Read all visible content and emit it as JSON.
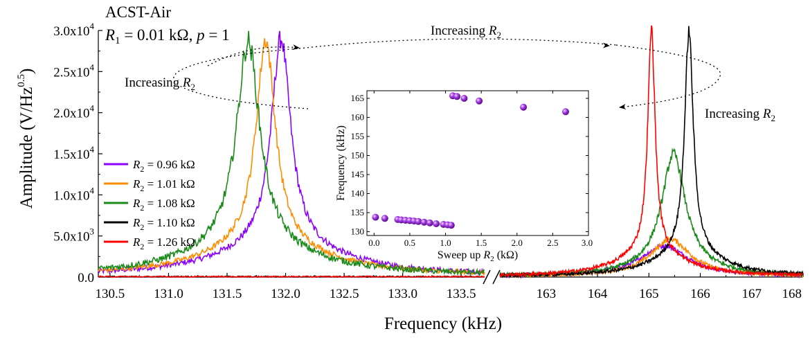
{
  "chart_data": {
    "type": "line",
    "header_line1": "ACST-Air",
    "header_line2": {
      "R": "R",
      "sub": "1",
      "rest": " = 0.01 kΩ, ",
      "p": "p",
      "rest2": " = 1"
    },
    "xlabel": "Frequency (kHz)",
    "ylabel": {
      "main": "Amplitude (V/Hz",
      "sup": "0.5",
      "close": ")"
    },
    "ylim": [
      0,
      30000
    ],
    "y_ticks": [
      {
        "value": 0,
        "label": "0.0"
      },
      {
        "value": 5000,
        "mant": "5.0x10",
        "exp": "3"
      },
      {
        "value": 10000,
        "mant": "1.0x10",
        "exp": "4"
      },
      {
        "value": 15000,
        "mant": "1.5x10",
        "exp": "4"
      },
      {
        "value": 20000,
        "mant": "2.0x10",
        "exp": "4"
      },
      {
        "value": 25000,
        "mant": "2.5x10",
        "exp": "4"
      },
      {
        "value": 30000,
        "mant": "3.0x10",
        "exp": "4"
      }
    ],
    "x_left": {
      "range": [
        130.4,
        133.7
      ],
      "ticks": [
        "130.5",
        "131.0",
        "131.5",
        "132.0",
        "132.5",
        "133.0",
        "133.5"
      ]
    },
    "x_right": {
      "range": [
        162.1,
        168.0
      ],
      "ticks": [
        "163",
        "164",
        "165",
        "166",
        "167",
        "168"
      ]
    },
    "legend": {
      "placement": "left",
      "items": [
        {
          "R": "R",
          "sub": "2",
          "rest": " = 0.96 kΩ"
        },
        {
          "R": "R",
          "sub": "2",
          "rest": " = 1.01 kΩ"
        },
        {
          "R": "R",
          "sub": "2",
          "rest": " = 1.08 kΩ"
        },
        {
          "R": "R",
          "sub": "2",
          "rest": " = 1.10 kΩ"
        },
        {
          "R": "R",
          "sub": "2",
          "rest": " = 1.26 kΩ"
        }
      ]
    },
    "series": [
      {
        "color": "#8b00ff",
        "left": {
          "peak": 131.96,
          "amp": 24800,
          "width": 0.1,
          "noise": 550
        },
        "right": {
          "peak": 165.3,
          "amp": 3200,
          "width": 0.55,
          "noise": 420
        }
      },
      {
        "color": "#ff8c00",
        "left": {
          "peak": 131.83,
          "amp": 24700,
          "width": 0.1,
          "noise": 500
        },
        "right": {
          "peak": 165.42,
          "amp": 4000,
          "width": 0.45,
          "noise": 420
        }
      },
      {
        "color": "#1a8a1a",
        "left": {
          "peak": 131.68,
          "amp": 24400,
          "width": 0.12,
          "noise": 650
        },
        "right": {
          "peak": 165.48,
          "amp": 13200,
          "width": 0.27,
          "noise": 450
        }
      },
      {
        "color": "#000000",
        "left": {
          "peak": 131.1,
          "amp": 0,
          "width": 0.1,
          "noise": 180
        },
        "right": {
          "peak": 165.78,
          "amp": 26500,
          "width": 0.1,
          "noise": 380
        }
      },
      {
        "color": "#ff0000",
        "left": {
          "peak": 131.1,
          "amp": 0,
          "width": 0.1,
          "noise": 180
        },
        "right": {
          "peak": 165.05,
          "amp": 26700,
          "width": 0.085,
          "noise": 380
        }
      }
    ],
    "annotations": [
      {
        "label": "Increasing",
        "R": "R",
        "sub": "2"
      },
      {
        "label": "Increasing",
        "R": "R",
        "sub": "2"
      },
      {
        "label": "Increasing",
        "R": "R",
        "sub": "2"
      }
    ],
    "inset": {
      "type": "scatter",
      "xlabel": {
        "main": "Sweep up ",
        "R": "R",
        "sub": "2",
        "rest": " (kΩ)"
      },
      "ylabel": "Frequency (kHz)",
      "xlim": [
        -0.1,
        3.0
      ],
      "ylim": [
        129,
        167
      ],
      "x_ticks": [
        "0.0",
        "0.5",
        "1.0",
        "1.5",
        "2.0",
        "2.5",
        "3.0"
      ],
      "y_ticks": [
        "130",
        "135",
        "140",
        "145",
        "150",
        "155",
        "160",
        "165"
      ],
      "marker_color": "#9b30d9",
      "points": [
        [
          0.02,
          133.8
        ],
        [
          0.15,
          133.5
        ],
        [
          0.33,
          133.2
        ],
        [
          0.38,
          133.1
        ],
        [
          0.44,
          133.0
        ],
        [
          0.5,
          132.9
        ],
        [
          0.56,
          132.8
        ],
        [
          0.62,
          132.7
        ],
        [
          0.7,
          132.5
        ],
        [
          0.78,
          132.3
        ],
        [
          0.87,
          132.1
        ],
        [
          0.97,
          131.9
        ],
        [
          1.03,
          131.8
        ],
        [
          1.08,
          131.7
        ],
        [
          1.1,
          165.7
        ],
        [
          1.16,
          165.5
        ],
        [
          1.26,
          165.0
        ],
        [
          1.47,
          164.3
        ],
        [
          2.09,
          162.7
        ],
        [
          2.68,
          161.5
        ]
      ]
    }
  }
}
